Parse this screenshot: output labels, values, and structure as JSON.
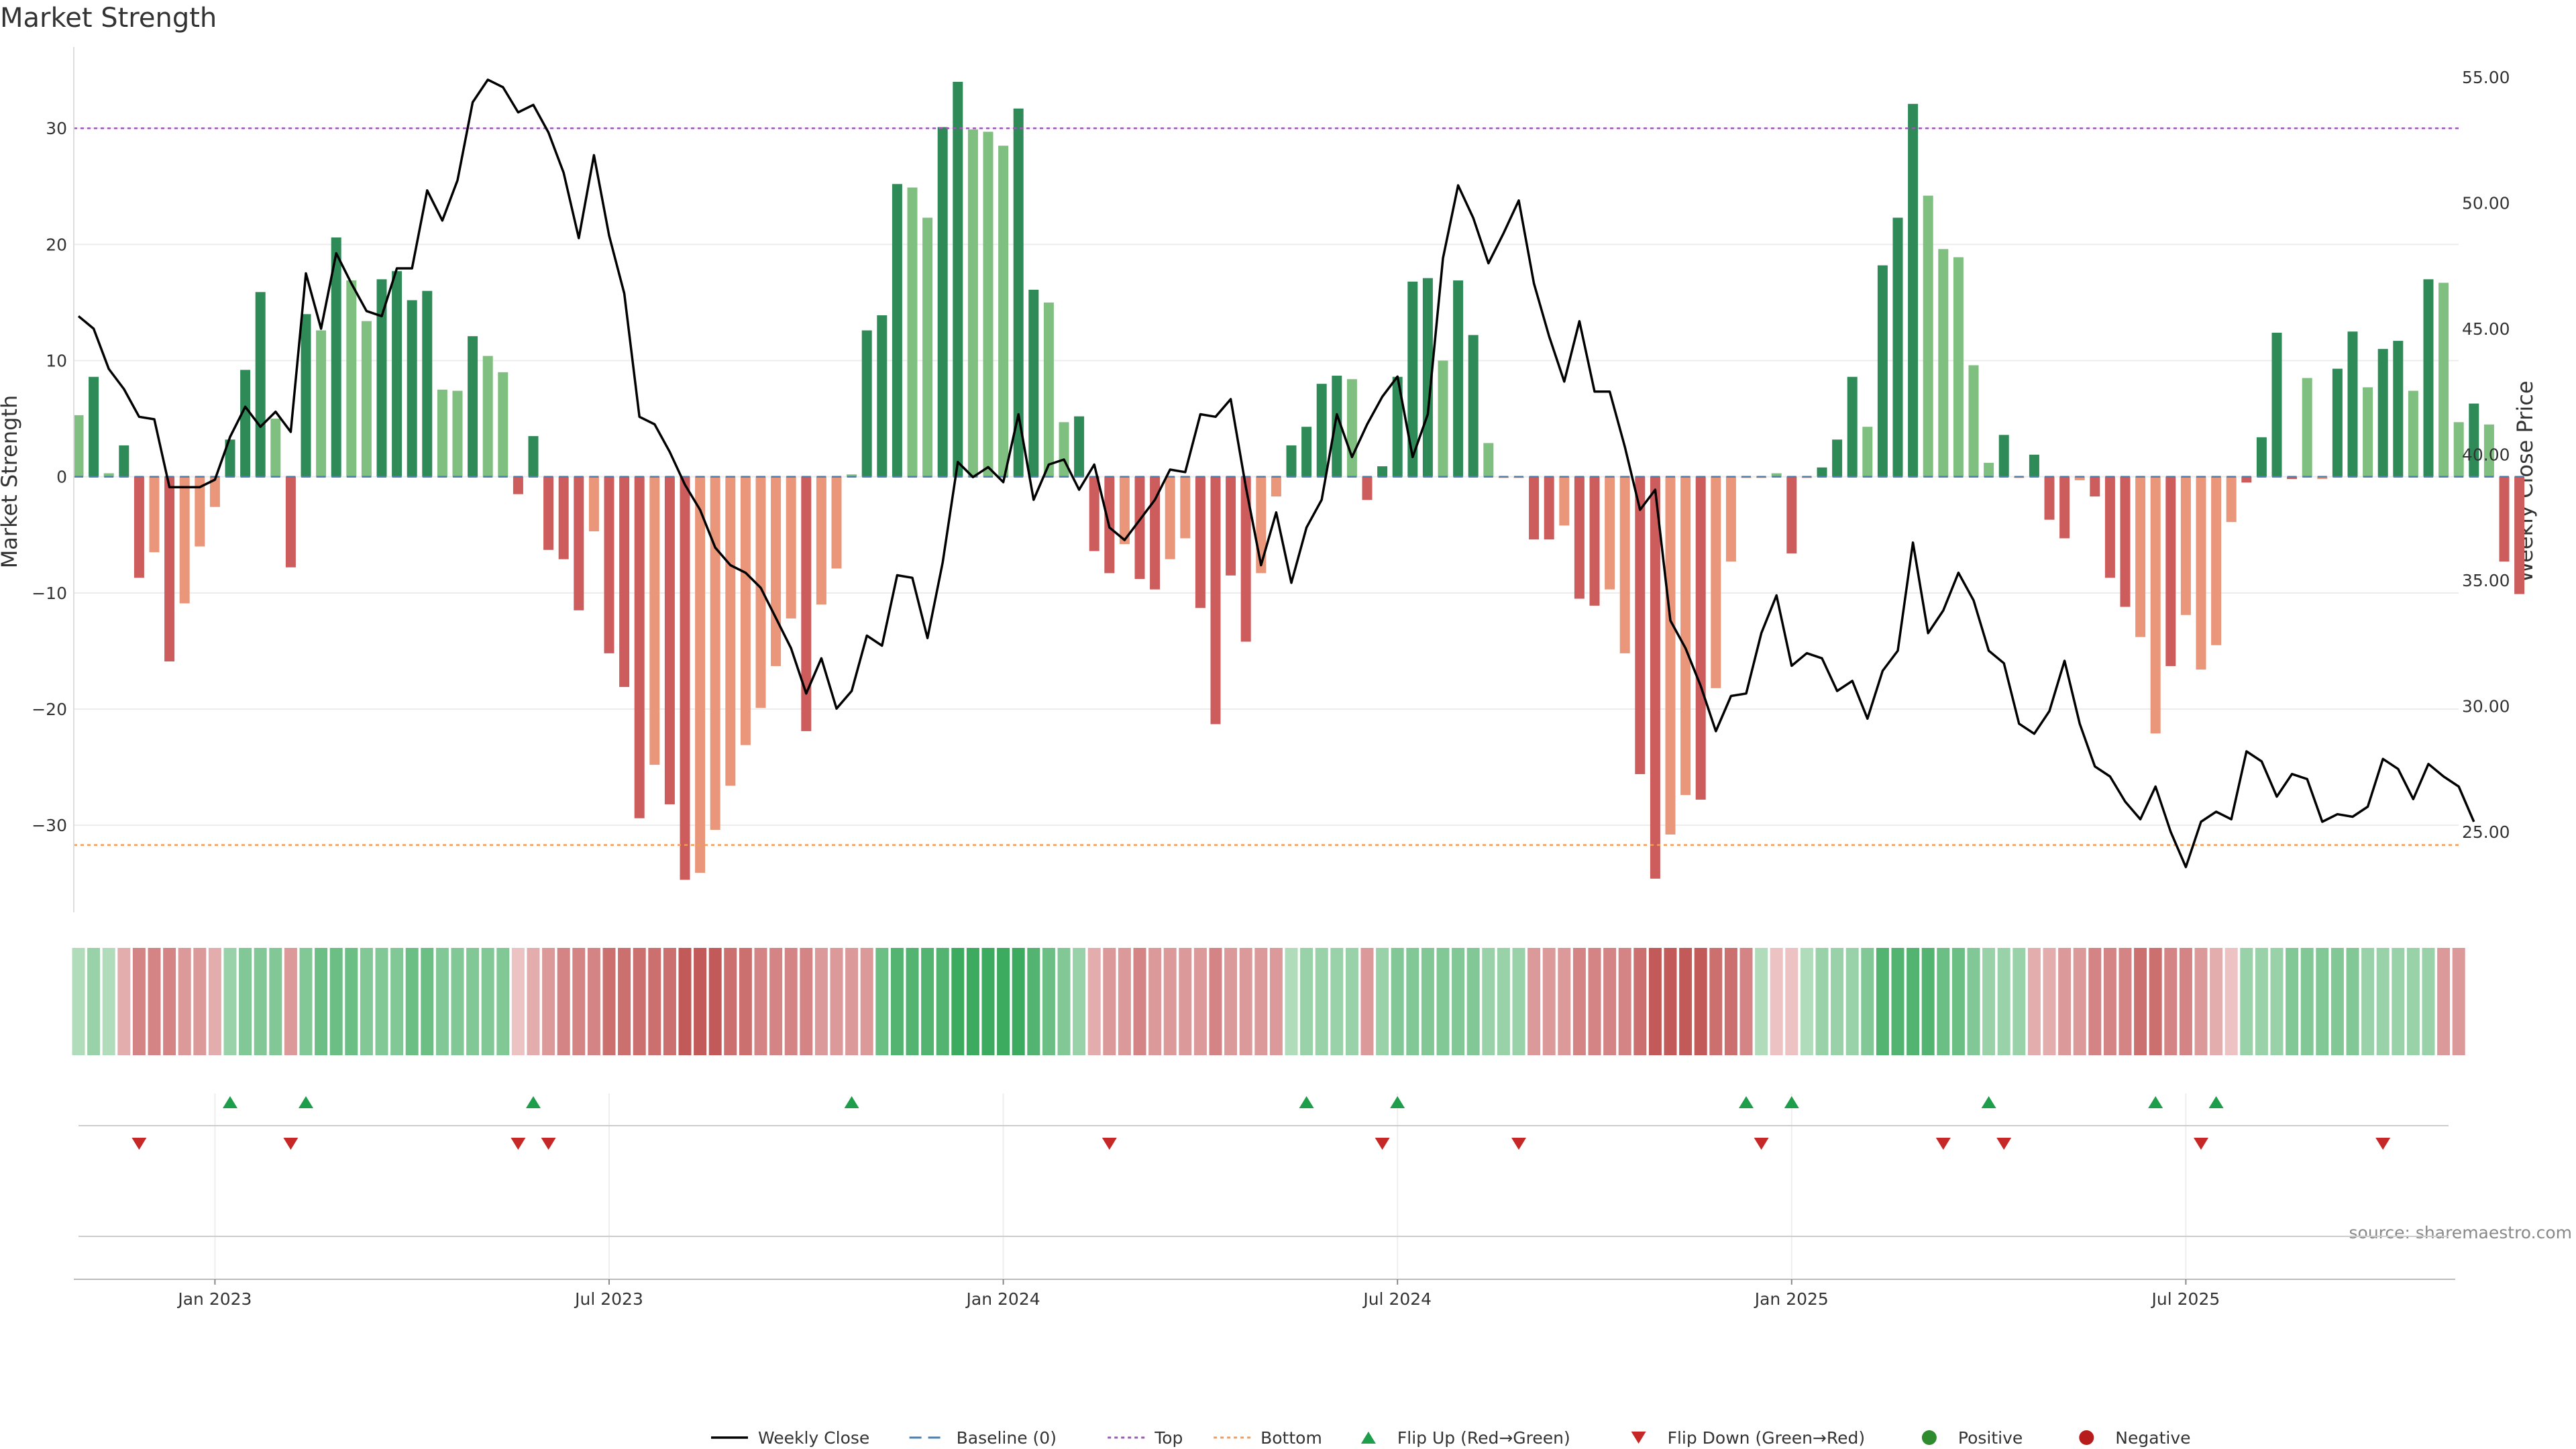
{
  "title": "Market Strength",
  "source": "source: sharemaestro.com",
  "colors": {
    "pos_strong": "#2e8b57",
    "pos_light": "#7fbf7f",
    "neg_strong": "#cd5c5c",
    "neg_light": "#e9967a",
    "close_line": "#000000",
    "top_line": "#9b59b6",
    "bottom_line": "#f39c5a",
    "flip_up": "#1e9e4a",
    "flip_down": "#c62828",
    "positive_dot": "#2e8b2e",
    "negative_dot": "#b71c1c",
    "baseline": "#4a7fb0"
  },
  "chart_data": {
    "type": "bar+line",
    "title": "Market Strength",
    "ylabel_left": "Market Strength",
    "ylabel_right": "Weekly Close Price",
    "ylim_left": [
      -37.5,
      37
    ],
    "ylim_right": [
      21.8,
      56.2
    ],
    "yticks_left": [
      {
        "value": 30,
        "label": "30"
      },
      {
        "value": 20,
        "label": "20"
      },
      {
        "value": 10,
        "label": "10"
      },
      {
        "value": 0,
        "label": "0"
      },
      {
        "value": -10,
        "label": "−10"
      },
      {
        "value": -20,
        "label": "−20"
      },
      {
        "value": -30,
        "label": "−30"
      }
    ],
    "yticks_right": [
      {
        "value": 55,
        "label": "55.00"
      },
      {
        "value": 50,
        "label": "50.00"
      },
      {
        "value": 45,
        "label": "45.00"
      },
      {
        "value": 40,
        "label": "40.00"
      },
      {
        "value": 35,
        "label": "35.00"
      },
      {
        "value": 30,
        "label": "30.00"
      },
      {
        "value": 25,
        "label": "25.00"
      }
    ],
    "xticks": [
      {
        "week": 9,
        "label": "Jan 2023"
      },
      {
        "week": 35,
        "label": "Jul 2023"
      },
      {
        "week": 61,
        "label": "Jan 2024"
      },
      {
        "week": 87,
        "label": "Jul 2024"
      },
      {
        "week": 113,
        "label": "Jan 2025"
      },
      {
        "week": 139,
        "label": "Jul 2025"
      }
    ],
    "top_threshold": 30,
    "bottom_threshold": -31.7,
    "strength": [
      5.3,
      8.6,
      0.3,
      2.7,
      -8.7,
      -6.5,
      -15.9,
      -10.9,
      -6.0,
      -2.6,
      3.2,
      9.2,
      15.9,
      5.0,
      -7.8,
      14.0,
      12.6,
      20.6,
      16.9,
      13.4,
      17.0,
      17.7,
      15.2,
      16.0,
      7.5,
      7.4,
      12.1,
      10.4,
      9.0,
      -1.5,
      3.5,
      -6.3,
      -7.1,
      -11.5,
      -4.7,
      -15.2,
      -18.1,
      -29.4,
      -24.8,
      -28.2,
      -34.7,
      -34.1,
      -30.4,
      -26.6,
      -23.1,
      -19.9,
      -16.3,
      -12.2,
      -21.9,
      -11.0,
      -7.9,
      0.2,
      12.6,
      13.9,
      25.2,
      24.9,
      22.3,
      30.1,
      34.0,
      29.9,
      29.7,
      28.5,
      31.7,
      16.1,
      15.0,
      4.7,
      5.2,
      -6.4,
      -8.3,
      -5.8,
      -8.8,
      -9.7,
      -7.1,
      -5.3,
      -11.3,
      -21.3,
      -8.5,
      -14.2,
      -8.3,
      -1.7,
      2.7,
      4.3,
      8.0,
      8.7,
      8.4,
      -2.0,
      0.9,
      8.6,
      16.8,
      17.1,
      10.0,
      16.9,
      12.2,
      2.9,
      -0.1,
      -0.1,
      -5.4,
      -5.4,
      -4.2,
      -10.5,
      -11.1,
      -9.7,
      -15.2,
      -25.6,
      -34.6,
      -30.8,
      -27.4,
      -27.8,
      -18.2,
      -7.3,
      -0.1,
      -0.1,
      0.3,
      -6.6,
      -0.1,
      0.8,
      3.2,
      8.6,
      4.3,
      18.2,
      22.3,
      32.1,
      24.2,
      19.6,
      18.9,
      9.6,
      1.2,
      3.6,
      -0.1,
      1.9,
      -3.7,
      -5.3,
      -0.3,
      -1.7,
      -8.7,
      -11.2,
      -13.8,
      -22.1,
      -16.3,
      -11.9,
      -16.6,
      -14.5,
      -3.9,
      -0.5,
      3.4,
      12.4,
      -0.2,
      8.5,
      -0.2,
      9.3,
      12.5,
      7.7,
      11.0,
      11.7,
      7.4,
      17.0,
      16.7,
      4.7,
      6.3,
      4.5,
      -7.3,
      -10.1
    ],
    "strength_shade": [
      1,
      2,
      0,
      2,
      2,
      1,
      2,
      1,
      1,
      1,
      2,
      2,
      2,
      1,
      2,
      2,
      1,
      2,
      1,
      1,
      2,
      2,
      2,
      2,
      1,
      1,
      2,
      1,
      1,
      2,
      2,
      2,
      2,
      2,
      1,
      2,
      2,
      2,
      1,
      2,
      2,
      1,
      1,
      1,
      1,
      1,
      1,
      1,
      2,
      1,
      1,
      0,
      2,
      2,
      2,
      1,
      1,
      2,
      2,
      1,
      1,
      1,
      2,
      2,
      1,
      1,
      2,
      2,
      2,
      1,
      2,
      2,
      1,
      1,
      2,
      2,
      2,
      2,
      1,
      1,
      2,
      2,
      2,
      2,
      1,
      2,
      2,
      2,
      2,
      2,
      1,
      2,
      2,
      1,
      0,
      0,
      2,
      2,
      1,
      2,
      2,
      1,
      1,
      2,
      2,
      1,
      1,
      2,
      1,
      1,
      0,
      0,
      0,
      2,
      0,
      2,
      2,
      2,
      1,
      2,
      2,
      2,
      1,
      1,
      1,
      1,
      1,
      2,
      0,
      2,
      2,
      2,
      0,
      2,
      2,
      2,
      1,
      1,
      2,
      1,
      1,
      1,
      0,
      2,
      2,
      2,
      2,
      1,
      0,
      2,
      2,
      1,
      2,
      2,
      1,
      2,
      1,
      1,
      2,
      1,
      2,
      2
    ],
    "close": [
      45.5,
      45.0,
      43.4,
      42.6,
      41.5,
      41.4,
      38.7,
      38.7,
      38.7,
      39.0,
      40.7,
      41.9,
      41.1,
      41.7,
      40.9,
      47.2,
      45.0,
      48.0,
      46.8,
      45.7,
      45.5,
      47.4,
      47.4,
      50.5,
      49.3,
      50.9,
      54.0,
      54.9,
      54.6,
      53.6,
      53.9,
      52.8,
      51.2,
      48.6,
      51.9,
      48.7,
      46.4,
      41.5,
      41.2,
      40.1,
      38.8,
      37.8,
      36.3,
      35.6,
      35.3,
      34.7,
      33.5,
      32.3,
      30.5,
      31.9,
      29.9,
      30.6,
      32.8,
      32.4,
      35.2,
      35.1,
      32.7,
      35.7,
      39.7,
      39.1,
      39.5,
      38.9,
      41.6,
      38.2,
      39.6,
      39.8,
      38.6,
      39.6,
      37.1,
      36.6,
      37.4,
      38.2,
      39.4,
      39.3,
      41.6,
      41.5,
      42.2,
      38.7,
      35.6,
      37.7,
      34.9,
      37.1,
      38.2,
      41.6,
      39.9,
      41.2,
      42.3,
      43.1,
      39.9,
      41.6,
      47.8,
      50.7,
      49.4,
      47.6,
      48.8,
      50.1,
      46.8,
      44.7,
      42.9,
      45.3,
      42.5,
      42.5,
      40.3,
      37.8,
      38.6,
      33.4,
      32.3,
      30.8,
      29.0,
      30.4,
      30.5,
      32.9,
      34.4,
      31.6,
      32.1,
      31.9,
      30.6,
      31.0,
      29.5,
      31.4,
      32.2,
      36.5,
      32.9,
      33.8,
      35.3,
      34.2,
      32.2,
      31.7,
      29.3,
      28.9,
      29.8,
      31.8,
      29.3,
      27.6,
      27.2,
      26.2,
      25.5,
      26.8,
      25.0,
      23.6,
      25.4,
      25.8,
      25.5,
      28.2,
      27.8,
      26.4,
      27.3,
      27.1,
      25.4,
      25.7,
      25.6,
      26.0,
      27.9,
      27.5,
      26.3,
      27.7,
      27.2,
      26.8,
      25.4
    ],
    "heat_level": [
      1,
      2,
      1,
      -2,
      -4,
      -4,
      -4,
      -3,
      -3,
      -2,
      2,
      3,
      3,
      3,
      -3,
      3,
      4,
      4,
      4,
      3,
      3,
      3,
      4,
      4,
      3,
      3,
      3,
      3,
      3,
      -1,
      -2,
      -3,
      -4,
      -4,
      -4,
      -5,
      -5,
      -5,
      -5,
      -5,
      -6,
      -6,
      -6,
      -5,
      -5,
      -4,
      -4,
      -4,
      -4,
      -3,
      -3,
      -3,
      -3,
      4,
      5,
      5,
      5,
      5,
      6,
      6,
      6,
      6,
      6,
      5,
      4,
      3,
      2,
      -2,
      -3,
      -3,
      -4,
      -3,
      -3,
      -3,
      -3,
      -4,
      -3,
      -3,
      -3,
      -3,
      1,
      2,
      2,
      2,
      2,
      -3,
      2,
      3,
      3,
      3,
      3,
      3,
      3,
      2,
      2,
      2,
      -3,
      -3,
      -3,
      -4,
      -4,
      -4,
      -4,
      -5,
      -6,
      -6,
      -6,
      -6,
      -5,
      -5,
      -4,
      1,
      -1,
      -1,
      1,
      2,
      2,
      2,
      3,
      5,
      5,
      5,
      5,
      4,
      4,
      3,
      2,
      2,
      2,
      -2,
      -2,
      -3,
      -3,
      -4,
      -4,
      -4,
      -5,
      -5,
      -4,
      -4,
      -3,
      -2,
      -1,
      2,
      2,
      2,
      3,
      3,
      3,
      3,
      3,
      2,
      2,
      2,
      2,
      2,
      -3,
      -3
    ],
    "flip_up_weeks": [
      10,
      15,
      30,
      51,
      81,
      87,
      110,
      113,
      126,
      137,
      141
    ],
    "flip_down_weeks": [
      4,
      14,
      29,
      31,
      68,
      86,
      95,
      111,
      123,
      127,
      140,
      152
    ]
  },
  "legend": [
    {
      "key": "weekly_close",
      "label": "Weekly Close"
    },
    {
      "key": "baseline",
      "label": "Baseline (0)"
    },
    {
      "key": "top",
      "label": "Top"
    },
    {
      "key": "bottom",
      "label": "Bottom"
    },
    {
      "key": "flip_up",
      "label": "Flip Up (Red→Green)"
    },
    {
      "key": "flip_down",
      "label": "Flip Down (Green→Red)"
    },
    {
      "key": "positive",
      "label": "Positive"
    },
    {
      "key": "negative",
      "label": "Negative"
    }
  ]
}
